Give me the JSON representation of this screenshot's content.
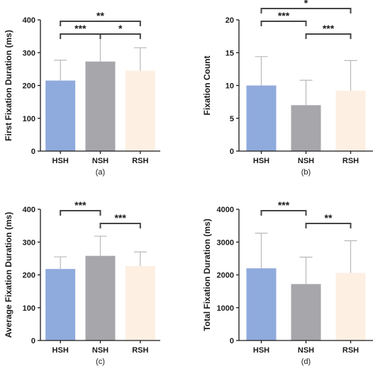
{
  "colors": {
    "HSH": "#8faadc",
    "NSH": "#a6a6ab",
    "RSH": "#fdefe2",
    "errorbar": "#b8b8b8",
    "axis": "#1a1a1a"
  },
  "chart_data": [
    {
      "type": "bar",
      "ylabel": "First Fixation Duration (ms)",
      "caption": "(a)",
      "categories": [
        "HSH",
        "NSH",
        "RSH"
      ],
      "values": [
        215,
        273,
        245
      ],
      "errors": [
        62,
        82,
        70
      ],
      "ylim": [
        0,
        400
      ],
      "yticks": [
        0,
        100,
        200,
        300,
        400
      ],
      "significance": [
        {
          "from": 0,
          "to": 1,
          "label": "***",
          "level": 0
        },
        {
          "from": 1,
          "to": 2,
          "label": "*",
          "level": 0
        },
        {
          "from": 0,
          "to": 2,
          "label": "**",
          "level": 1
        }
      ]
    },
    {
      "type": "bar",
      "ylabel": "Fixation Count",
      "caption": "(b)",
      "categories": [
        "HSH",
        "NSH",
        "RSH"
      ],
      "values": [
        10.0,
        7.0,
        9.2
      ],
      "errors": [
        4.4,
        3.8,
        4.6
      ],
      "ylim": [
        0,
        20
      ],
      "yticks": [
        0,
        5,
        10,
        15,
        20
      ],
      "significance": [
        {
          "from": 0,
          "to": 1,
          "label": "***",
          "level": 1
        },
        {
          "from": 1,
          "to": 2,
          "label": "***",
          "level": 0
        },
        {
          "from": 0,
          "to": 2,
          "label": "*",
          "level": 2
        }
      ]
    },
    {
      "type": "bar",
      "ylabel": "Average Fixation Duration (ms)",
      "caption": "(c)",
      "categories": [
        "HSH",
        "NSH",
        "RSH"
      ],
      "values": [
        218,
        258,
        227
      ],
      "errors": [
        37,
        60,
        43
      ],
      "ylim": [
        0,
        400
      ],
      "yticks": [
        0,
        100,
        200,
        300,
        400
      ],
      "significance": [
        {
          "from": 0,
          "to": 1,
          "label": "***",
          "level": 1
        },
        {
          "from": 1,
          "to": 2,
          "label": "***",
          "level": 0
        }
      ]
    },
    {
      "type": "bar",
      "ylabel": "Total Fixation Duration (ms)",
      "caption": "(d)",
      "categories": [
        "HSH",
        "NSH",
        "RSH"
      ],
      "values": [
        2200,
        1720,
        2060
      ],
      "errors": [
        1070,
        820,
        980
      ],
      "ylim": [
        0,
        4000
      ],
      "yticks": [
        0,
        1000,
        2000,
        3000,
        4000
      ],
      "significance": [
        {
          "from": 0,
          "to": 1,
          "label": "***",
          "level": 1
        },
        {
          "from": 1,
          "to": 2,
          "label": "**",
          "level": 0
        }
      ]
    }
  ]
}
